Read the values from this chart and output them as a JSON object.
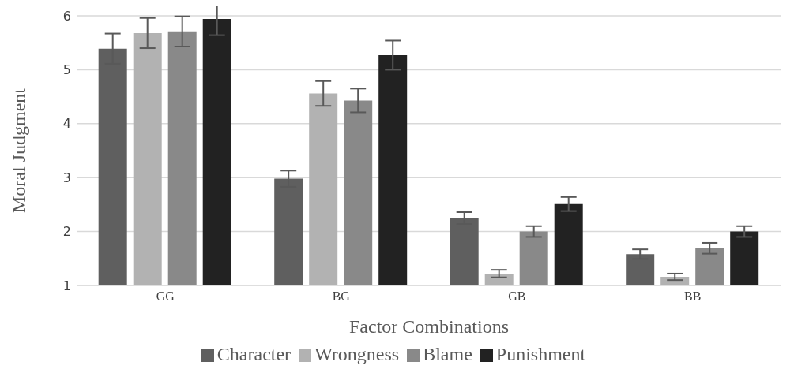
{
  "chart_data": {
    "type": "bar",
    "xlabel": "Factor Combinations",
    "ylabel": "Moral Judgment",
    "categories": [
      "GG",
      "BG",
      "GB",
      "BB"
    ],
    "series": [
      {
        "name": "Character",
        "color": "#5f5f5f",
        "values": [
          5.39,
          2.98,
          2.25,
          1.58
        ],
        "errors": [
          0.28,
          0.15,
          0.11,
          0.09
        ]
      },
      {
        "name": "Wrongness",
        "color": "#b2b2b2",
        "values": [
          5.68,
          4.56,
          1.22,
          1.16
        ],
        "errors": [
          0.28,
          0.23,
          0.07,
          0.06
        ]
      },
      {
        "name": "Blame",
        "color": "#898989",
        "values": [
          5.71,
          4.43,
          2.0,
          1.69
        ],
        "errors": [
          0.28,
          0.22,
          0.1,
          0.1
        ]
      },
      {
        "name": "Punishment",
        "color": "#222222",
        "values": [
          5.94,
          5.27,
          2.51,
          2.0
        ],
        "errors": [
          0.3,
          0.27,
          0.13,
          0.1
        ]
      }
    ],
    "ylim": [
      1,
      6
    ],
    "yticks": [
      1,
      2,
      3,
      4,
      5,
      6
    ],
    "grid": "y",
    "legend": "bottom"
  }
}
